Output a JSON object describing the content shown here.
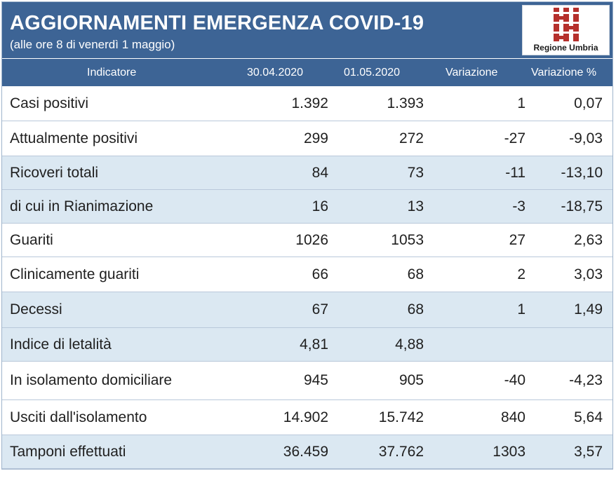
{
  "header": {
    "title": "AGGIORNAMENTI EMERGENZA COVID-19",
    "subtitle": "(alle ore 8 di venerdì 1 maggio)",
    "logo_text": "Regione Umbria"
  },
  "columns": [
    "Indicatore",
    "30.04.2020",
    "01.05.2020",
    "Variazione",
    "Variazione %"
  ],
  "rows": [
    {
      "name": "Casi positivi",
      "d1": "1.392",
      "d2": "1.393",
      "var": "1",
      "pct": "0,07"
    },
    {
      "name": "Attualmente positivi",
      "d1": "299",
      "d2": "272",
      "var": "-27",
      "pct": "-9,03"
    },
    {
      "name": "Ricoveri totali",
      "d1": "84",
      "d2": "73",
      "var": "-11",
      "pct": "-13,10"
    },
    {
      "name": "di cui in Rianimazione",
      "d1": "16",
      "d2": "13",
      "var": "-3",
      "pct": "-18,75"
    },
    {
      "name": "Guariti",
      "d1": "1026",
      "d2": "1053",
      "var": "27",
      "pct": "2,63"
    },
    {
      "name": "Clinicamente guariti",
      "d1": "66",
      "d2": "68",
      "var": "2",
      "pct": "3,03"
    },
    {
      "name": "Decessi",
      "d1": "67",
      "d2": "68",
      "var": "1",
      "pct": "1,49"
    },
    {
      "name": "Indice di letalità",
      "d1": "4,81",
      "d2": "4,88",
      "var": "",
      "pct": ""
    },
    {
      "name": "In isolamento domiciliare",
      "d1": "945",
      "d2": "905",
      "var": "-40",
      "pct": "-4,23"
    },
    {
      "name": "Usciti dall'isolamento",
      "d1": "14.902",
      "d2": "15.742",
      "var": "840",
      "pct": "5,64"
    },
    {
      "name": "Tamponi effettuati",
      "d1": "36.459",
      "d2": "37.762",
      "var": "1303",
      "pct": "3,57"
    }
  ],
  "colors": {
    "header_blue": "#3d6495",
    "row_alt": "#dbe8f2",
    "logo_red": "#b5302c"
  }
}
